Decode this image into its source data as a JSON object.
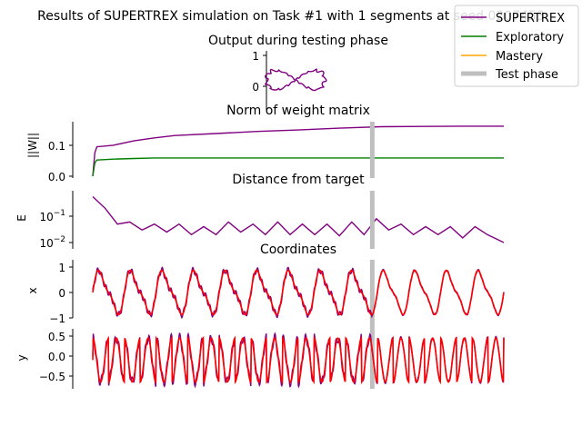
{
  "figure": {
    "suptitle": "Results of SUPERTREX simulation on Task #1 with 1 segments at seed 0207453"
  },
  "legend": {
    "placement": "top-right",
    "entries": [
      {
        "label": "SUPERTREX",
        "color": "#800080"
      },
      {
        "label": "Exploratory",
        "color": "#008000"
      },
      {
        "label": "Mastery",
        "color": "#ffa500"
      },
      {
        "label": "Test phase",
        "color": "#bfbfbf"
      }
    ]
  },
  "colors": {
    "supertrex": "#800080",
    "exploratory": "#008000",
    "mastery": "#ffa500",
    "test_phase": "#bfbfbf",
    "target": "#ff0000"
  },
  "chart_data": [
    {
      "type": "line",
      "title": "Output during testing phase",
      "xlabel": "",
      "ylabel": "",
      "yticks": [
        "1",
        "0"
      ],
      "ylim": [
        -1,
        1
      ],
      "note": "butterfly-shaped trajectory (x vs y)",
      "series": [
        {
          "name": "SUPERTREX",
          "shape": "butterfly",
          "x_range": [
            -1,
            1
          ],
          "y_range": [
            -0.6,
            0.6
          ]
        }
      ]
    },
    {
      "type": "line",
      "title": "Norm of weight matrix",
      "xlabel": "",
      "ylabel": "||W||",
      "yticks": [
        "0.1",
        "0.0"
      ],
      "ylim": [
        0,
        0.17
      ],
      "x_range": [
        0,
        1
      ],
      "test_phase_x": 0.68,
      "series": [
        {
          "name": "SUPERTREX",
          "x": [
            0,
            0.005,
            0.01,
            0.05,
            0.1,
            0.15,
            0.2,
            0.3,
            0.4,
            0.5,
            0.6,
            0.7,
            0.8,
            0.9,
            1.0
          ],
          "y": [
            0.0,
            0.08,
            0.1,
            0.105,
            0.12,
            0.13,
            0.138,
            0.145,
            0.152,
            0.157,
            0.163,
            0.168,
            0.169,
            0.17,
            0.17
          ]
        },
        {
          "name": "Exploratory",
          "x": [
            0,
            0.005,
            0.01,
            0.05,
            0.1,
            0.15,
            0.2,
            0.4,
            0.6,
            0.8,
            1.0
          ],
          "y": [
            0.0,
            0.045,
            0.055,
            0.058,
            0.06,
            0.062,
            0.062,
            0.062,
            0.062,
            0.062,
            0.062
          ]
        }
      ]
    },
    {
      "type": "line",
      "title": "Distance from target",
      "xlabel": "",
      "ylabel": "E",
      "yscale": "log",
      "yticks": [
        "10^-1",
        "10^-2"
      ],
      "ylim": [
        0.008,
        0.8
      ],
      "x_range": [
        0,
        1
      ],
      "test_phase_x": 0.68,
      "series": [
        {
          "name": "SUPERTREX",
          "x": [
            0,
            0.03,
            0.06,
            0.09,
            0.12,
            0.15,
            0.18,
            0.21,
            0.24,
            0.27,
            0.3,
            0.33,
            0.36,
            0.39,
            0.42,
            0.45,
            0.48,
            0.51,
            0.54,
            0.57,
            0.6,
            0.63,
            0.66,
            0.69,
            0.72,
            0.75,
            0.78,
            0.81,
            0.84,
            0.87,
            0.9,
            0.93,
            0.96,
            1.0
          ],
          "y": [
            0.55,
            0.2,
            0.05,
            0.06,
            0.03,
            0.05,
            0.025,
            0.05,
            0.02,
            0.04,
            0.02,
            0.06,
            0.025,
            0.05,
            0.02,
            0.06,
            0.02,
            0.05,
            0.02,
            0.05,
            0.018,
            0.06,
            0.02,
            0.08,
            0.03,
            0.05,
            0.02,
            0.04,
            0.02,
            0.04,
            0.015,
            0.04,
            0.02,
            0.01
          ]
        }
      ]
    },
    {
      "type": "line",
      "title": "Coordinates",
      "xlabel": "",
      "ylabel": "x",
      "yticks": [
        "1",
        "0",
        "−1"
      ],
      "ylim": [
        -1,
        1
      ],
      "x_range": [
        0,
        1
      ],
      "test_phase_x": 0.68,
      "series": [
        {
          "name": "SUPERTREX",
          "periodic": true,
          "cycles": 13,
          "amplitude": 0.95
        },
        {
          "name": "target",
          "periodic": true,
          "cycles": 13,
          "amplitude": 0.95
        }
      ]
    },
    {
      "type": "line",
      "title": "",
      "xlabel": "",
      "ylabel": "y",
      "yticks": [
        "0.5",
        "0.0",
        "−0.5"
      ],
      "ylim": [
        -0.75,
        0.6
      ],
      "x_range": [
        0,
        1
      ],
      "test_phase_x": 0.68,
      "series": [
        {
          "name": "SUPERTREX",
          "periodic": true,
          "cycles": 13,
          "amplitude": 0.6
        },
        {
          "name": "target",
          "periodic": true,
          "cycles": 13,
          "amplitude": 0.6
        }
      ]
    }
  ]
}
